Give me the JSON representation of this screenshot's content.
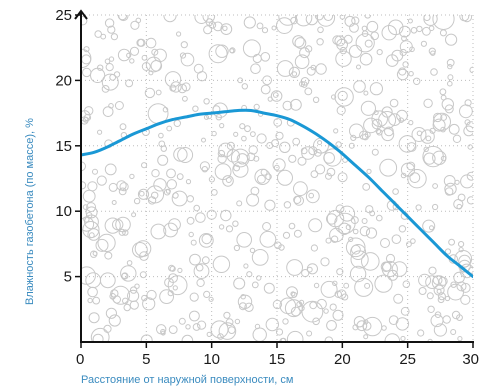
{
  "chart_data": {
    "type": "line",
    "title": "",
    "xlabel": "Расстояние от наружной поверхности, см",
    "ylabel": "Влажность газобетона (по массе), %",
    "xlim": [
      0,
      30
    ],
    "ylim": [
      0,
      25
    ],
    "x_ticks": [
      0,
      5,
      10,
      15,
      20,
      25,
      30
    ],
    "y_ticks": [
      5,
      10,
      15,
      20,
      25
    ],
    "grid": true,
    "background_pattern": "porous-aerated-concrete-bubbles",
    "series": [
      {
        "color": "#1a98d5",
        "x": [
          0,
          1,
          2,
          3,
          4,
          5,
          6,
          7,
          8,
          9,
          10,
          11,
          12,
          13,
          14,
          15,
          16,
          17,
          18,
          19,
          20,
          21,
          22,
          23,
          24,
          25,
          26,
          27,
          28,
          29,
          30
        ],
        "y": [
          14.3,
          14.5,
          14.9,
          15.4,
          15.9,
          16.3,
          16.7,
          17.0,
          17.2,
          17.4,
          17.5,
          17.6,
          17.7,
          17.7,
          17.5,
          17.3,
          17.0,
          16.5,
          15.9,
          15.2,
          14.4,
          13.5,
          12.6,
          11.6,
          10.6,
          9.6,
          8.6,
          7.6,
          6.6,
          5.8,
          5.0
        ]
      }
    ]
  },
  "colors": {
    "line": "#1a98d5",
    "axis": "#111111",
    "grid": "#bdbdbd",
    "bubble_stroke": "#c8c8c8",
    "axis_title": "#3a8bbf"
  }
}
